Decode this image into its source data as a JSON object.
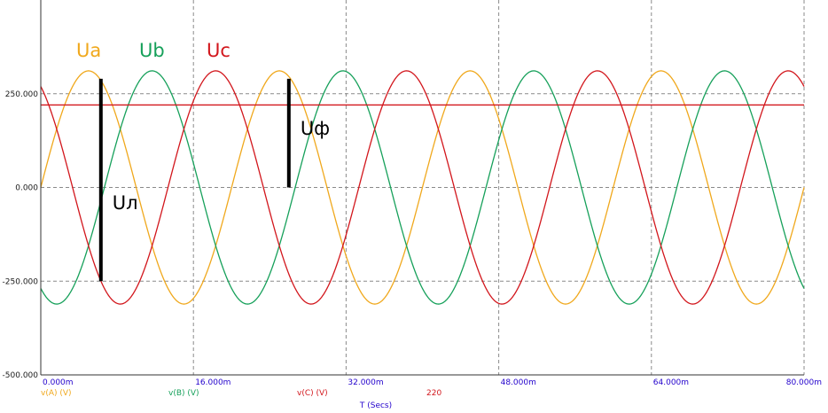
{
  "chart_data": {
    "type": "line",
    "xlabel": "T (Secs)",
    "xlim": [
      0,
      0.08
    ],
    "ylim": [
      -500,
      500
    ],
    "x_ticks": [
      {
        "value": 0.0,
        "label": "0.000m"
      },
      {
        "value": 0.016,
        "label": "16.000m"
      },
      {
        "value": 0.032,
        "label": "32.000m"
      },
      {
        "value": 0.048,
        "label": "48.000m"
      },
      {
        "value": 0.064,
        "label": "64.000m"
      },
      {
        "value": 0.08,
        "label": "80.000m"
      }
    ],
    "y_ticks": [
      {
        "value": 250,
        "label": "250.000"
      },
      {
        "value": 0,
        "label": "0.000"
      },
      {
        "value": -250,
        "label": "-250.000"
      },
      {
        "value": -500,
        "label": "-500.000"
      }
    ],
    "grid": true,
    "series": [
      {
        "name": "v(A) (V)",
        "function": "sine",
        "amplitude": 311,
        "frequency_hz": 50,
        "phase_deg": 0,
        "color": "#f0a81c"
      },
      {
        "name": "v(B) (V)",
        "function": "sine",
        "amplitude": 311,
        "frequency_hz": 50,
        "phase_deg": -120,
        "color": "#16a05a"
      },
      {
        "name": "v(C) (V)",
        "function": "sine",
        "amplitude": 311,
        "frequency_hz": 50,
        "phase_deg": 120,
        "color": "#d2161c"
      },
      {
        "name": "220",
        "function": "constant",
        "value": 220,
        "color": "#d2161c"
      }
    ],
    "annotations": [
      {
        "text": "Ua",
        "color": "#f0a81c"
      },
      {
        "text": "Ub",
        "color": "#16a05a"
      },
      {
        "text": "Uc",
        "color": "#d2161c"
      },
      {
        "text": "Uф",
        "color": "#000000",
        "x": 0.026,
        "y0": 0,
        "y1": 290
      },
      {
        "text": "Uл",
        "color": "#000000",
        "x": 0.0063,
        "y0": -250,
        "y1": 290
      }
    ]
  }
}
